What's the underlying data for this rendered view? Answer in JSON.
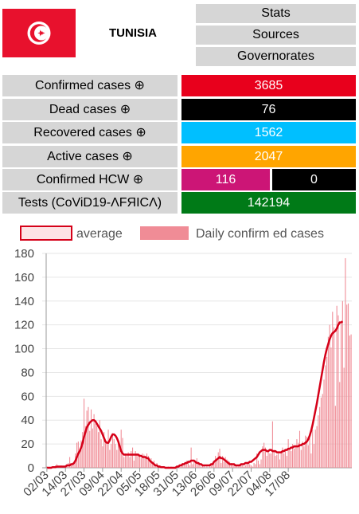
{
  "header": {
    "country": "TUNISIA",
    "nav": [
      "Stats",
      "Sources",
      "Governorates"
    ]
  },
  "stats": {
    "confirmed": {
      "label": "Confirmed cases ⊕",
      "value": "3685",
      "color": "#e8001c"
    },
    "dead": {
      "label": "Dead cases ⊕",
      "value": "76",
      "color": "#000000"
    },
    "recovered": {
      "label": "Recovered cases ⊕",
      "value": "1562",
      "color": "#00bfff"
    },
    "active": {
      "label": "Active cases ⊕",
      "value": "2047",
      "color": "#ffa500"
    },
    "hcw": {
      "label": "Confirmed HCW ⊕",
      "value": "116",
      "value2": "0",
      "color": "#cc1576",
      "color2": "#000000"
    },
    "tests": {
      "label": "Tests (CoViD19-ΛFЯICΛ)",
      "value": "142194",
      "color": "#007a17"
    }
  },
  "chart_data": {
    "type": "bar",
    "legend": [
      "average",
      "Daily confirm ed cases"
    ],
    "bar_color": "#f08c96",
    "line_color": "#d50018",
    "x_tick_labels": [
      "02/03",
      "14/03",
      "27/03",
      "09/04",
      "22/04",
      "05/05",
      "18/05",
      "31/05",
      "13/06",
      "26/06",
      "09/07",
      "22/07",
      "04/08",
      "17/08"
    ],
    "y_ticks": [
      0,
      20,
      40,
      60,
      80,
      100,
      120,
      140,
      160,
      180
    ],
    "ylim": [
      0,
      180
    ],
    "daily": [
      1,
      0,
      0,
      1,
      0,
      1,
      2,
      3,
      0,
      1,
      2,
      0,
      1,
      2,
      3,
      4,
      9,
      3,
      2,
      5,
      12,
      21,
      22,
      16,
      23,
      30,
      58,
      35,
      48,
      51,
      31,
      49,
      33,
      45,
      37,
      35,
      30,
      40,
      24,
      18,
      30,
      23,
      21,
      32,
      15,
      20,
      29,
      24,
      20,
      15,
      23,
      17,
      32,
      25,
      9,
      12,
      10,
      13,
      9,
      14,
      17,
      6,
      14,
      12,
      10,
      11,
      8,
      12,
      11,
      9,
      12,
      10,
      5,
      8,
      3,
      6,
      2,
      4,
      1,
      2,
      0,
      1,
      1,
      0,
      0,
      1,
      0,
      1,
      0,
      0,
      0,
      1,
      2,
      1,
      3,
      4,
      2,
      3,
      6,
      4,
      2,
      17,
      3,
      5,
      6,
      8,
      4,
      2,
      1,
      3,
      2,
      0,
      1,
      0,
      1,
      2,
      3,
      6,
      10,
      7,
      13,
      16,
      4,
      10,
      5,
      9,
      7,
      6,
      5,
      4,
      3,
      2,
      1,
      2,
      1,
      2,
      3,
      2,
      1,
      2,
      3,
      5,
      3,
      2,
      1,
      4,
      3,
      12,
      6,
      3,
      7,
      18,
      21,
      17,
      10,
      14,
      12,
      12,
      39,
      15,
      10,
      11,
      12,
      7,
      13,
      17,
      12,
      14,
      10,
      24,
      16,
      14,
      20,
      16,
      19,
      24,
      21,
      31,
      15,
      22,
      18,
      27,
      26,
      19,
      25,
      12,
      32,
      20,
      32,
      35,
      44,
      51,
      59,
      62,
      74,
      86,
      93,
      110,
      120,
      101,
      131,
      118,
      52,
      136,
      128,
      72,
      121,
      140,
      84,
      176,
      137,
      138,
      111,
      112
    ],
    "average": [
      0,
      0,
      0,
      0,
      0.5,
      0.5,
      0.5,
      1,
      1,
      1,
      1,
      1,
      1,
      1,
      2,
      2,
      2,
      3,
      3,
      4,
      6,
      9,
      12,
      14,
      17,
      21,
      26,
      30,
      34,
      36,
      38,
      39,
      40,
      40,
      39,
      37,
      35,
      33,
      31,
      28,
      25,
      22,
      21,
      21,
      23,
      26,
      28,
      28,
      27,
      25,
      22,
      18,
      14,
      12,
      11,
      11,
      11,
      11,
      11,
      11,
      11,
      11,
      11,
      11,
      11,
      10,
      10,
      9,
      9,
      9,
      8,
      8,
      6,
      5,
      4,
      3,
      2,
      2,
      1,
      1,
      0.5,
      0.5,
      0.5,
      0,
      0,
      0,
      0,
      0,
      0,
      0,
      0,
      1,
      1,
      2,
      2,
      3,
      3,
      4,
      4,
      5,
      5,
      6,
      6,
      6,
      5,
      4,
      4,
      3,
      3,
      2,
      2,
      2,
      2,
      2,
      2,
      3,
      3,
      5,
      6,
      7,
      8,
      9,
      8,
      8,
      7,
      6,
      5,
      4,
      3,
      3,
      3,
      3,
      2,
      2,
      2,
      2,
      3,
      3,
      3,
      4,
      4,
      4,
      5,
      5,
      6,
      7,
      8,
      9,
      11,
      13,
      14,
      15,
      15,
      15,
      14,
      14,
      15,
      15,
      14,
      14,
      14,
      13,
      13,
      13,
      13,
      14,
      14,
      15,
      15,
      16,
      16,
      17,
      17,
      18,
      18,
      18,
      18,
      19,
      19,
      20,
      20,
      21,
      22,
      24,
      27,
      31,
      36,
      42,
      48,
      54,
      61,
      68,
      75,
      82,
      89,
      95,
      100,
      104,
      108,
      111,
      113,
      114,
      115,
      117,
      120,
      122,
      122,
      123
    ]
  }
}
